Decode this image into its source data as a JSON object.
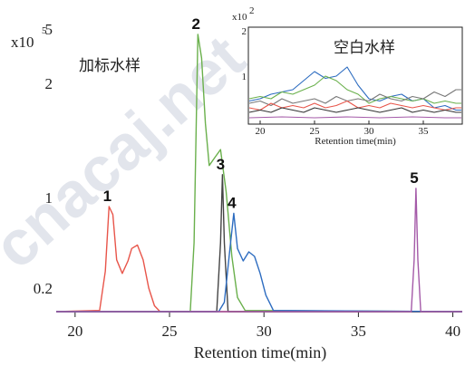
{
  "chart_data": [
    {
      "type": "line",
      "title": "加标水样",
      "xlabel": "Retention time(min)",
      "ylabel": "",
      "y_multiplier": "x10",
      "y_multiplier_exp": "5",
      "xlim": [
        19,
        40.5
      ],
      "ylim": [
        0,
        5
      ],
      "x_ticks": [
        20,
        25,
        30,
        35,
        40
      ],
      "y_ticks": [
        {
          "value": 0.2,
          "label": "0.2"
        },
        {
          "value": 1,
          "label": "1"
        },
        {
          "value": 2,
          "label": "2"
        },
        {
          "value": 5,
          "label": "5"
        }
      ],
      "series": [
        {
          "color": "#e8554a",
          "x": [
            19,
            21.3,
            21.6,
            21.8,
            22.0,
            22.2,
            22.5,
            22.8,
            23.0,
            23.3,
            23.6,
            23.9,
            24.2,
            24.5,
            40.5
          ],
          "y": [
            0,
            0.01,
            0.35,
            0.92,
            0.85,
            0.45,
            0.33,
            0.44,
            0.55,
            0.58,
            0.45,
            0.2,
            0.05,
            0,
            0
          ]
        },
        {
          "color": "#6ab04c",
          "x": [
            19,
            26.1,
            26.3,
            26.5,
            26.7,
            26.9,
            27.1,
            27.4,
            27.7,
            28.0,
            28.3,
            28.6,
            29.0,
            40.5
          ],
          "y": [
            0,
            0,
            0.6,
            4.7,
            3.4,
            1.65,
            1.28,
            1.35,
            1.42,
            1.05,
            0.48,
            0.12,
            0.01,
            0
          ]
        },
        {
          "color": "#444444",
          "x": [
            19,
            27.5,
            27.7,
            27.8,
            27.9,
            28.1,
            40.5
          ],
          "y": [
            0,
            0,
            0.6,
            1.2,
            0.6,
            0,
            0
          ]
        },
        {
          "color": "#2d6cc0",
          "x": [
            19,
            27.6,
            27.9,
            28.2,
            28.4,
            28.6,
            28.9,
            29.2,
            29.5,
            29.8,
            30.1,
            30.5,
            40.5
          ],
          "y": [
            0,
            0,
            0.08,
            0.55,
            0.86,
            0.55,
            0.44,
            0.52,
            0.48,
            0.33,
            0.14,
            0.01,
            0
          ]
        },
        {
          "color": "#a45aa8",
          "x": [
            19,
            37.8,
            37.95,
            38.05,
            38.15,
            38.3,
            40.5
          ],
          "y": [
            0,
            0,
            0.45,
            1.08,
            0.45,
            0,
            0
          ]
        }
      ],
      "annotations": [
        {
          "label": "1",
          "x": 21.8,
          "y": 0.92
        },
        {
          "label": "2",
          "x": 26.5,
          "y": 4.7
        },
        {
          "label": "3",
          "x": 27.8,
          "y": 1.2
        },
        {
          "label": "4",
          "x": 28.4,
          "y": 0.86
        },
        {
          "label": "5",
          "x": 38.05,
          "y": 1.08
        }
      ]
    },
    {
      "type": "line",
      "title": "空白水样",
      "xlabel": "Retention time(min)",
      "ylabel": "",
      "y_multiplier": "x10",
      "y_multiplier_exp": "2",
      "xlim": [
        19,
        38.5
      ],
      "ylim": [
        0,
        2
      ],
      "x_ticks": [
        20,
        25,
        30,
        35
      ],
      "y_ticks": [
        {
          "value": 1,
          "label": "1"
        },
        {
          "value": 2,
          "label": "2"
        }
      ],
      "series": [
        {
          "color": "#2d6cc0",
          "x": [
            19,
            20,
            21,
            22,
            23,
            24,
            25,
            26,
            27,
            28,
            29,
            30,
            31,
            32,
            33,
            34,
            35,
            36,
            37,
            38,
            38.5
          ],
          "y": [
            0.45,
            0.5,
            0.6,
            0.65,
            0.7,
            0.9,
            1.1,
            0.95,
            1.0,
            1.2,
            0.8,
            0.5,
            0.45,
            0.55,
            0.6,
            0.45,
            0.5,
            0.3,
            0.35,
            0.25,
            0.25
          ]
        },
        {
          "color": "#6ab04c",
          "x": [
            19,
            20,
            21,
            22,
            23,
            24,
            25,
            26,
            27,
            28,
            29,
            30,
            31,
            32,
            33,
            34,
            35,
            36,
            37,
            38,
            38.5
          ],
          "y": [
            0.5,
            0.55,
            0.5,
            0.65,
            0.6,
            0.7,
            0.8,
            1.0,
            0.9,
            0.7,
            0.6,
            0.4,
            0.5,
            0.55,
            0.5,
            0.45,
            0.5,
            0.4,
            0.45,
            0.4,
            0.4
          ]
        },
        {
          "color": "#777777",
          "x": [
            19,
            20,
            21,
            22,
            23,
            24,
            25,
            26,
            27,
            28,
            29,
            30,
            31,
            32,
            33,
            34,
            35,
            36,
            37,
            38,
            38.5
          ],
          "y": [
            0.4,
            0.45,
            0.35,
            0.5,
            0.4,
            0.45,
            0.5,
            0.4,
            0.55,
            0.45,
            0.5,
            0.45,
            0.6,
            0.5,
            0.45,
            0.55,
            0.5,
            0.65,
            0.55,
            0.7,
            0.7
          ]
        },
        {
          "color": "#e8554a",
          "x": [
            19,
            20,
            21,
            22,
            23,
            24,
            25,
            26,
            27,
            28,
            29,
            30,
            31,
            32,
            33,
            34,
            35,
            36,
            37,
            38,
            38.5
          ],
          "y": [
            0.3,
            0.25,
            0.4,
            0.3,
            0.35,
            0.3,
            0.4,
            0.3,
            0.35,
            0.45,
            0.3,
            0.35,
            0.3,
            0.4,
            0.35,
            0.3,
            0.35,
            0.3,
            0.25,
            0.3,
            0.3
          ]
        },
        {
          "color": "#333333",
          "x": [
            19,
            20,
            21,
            22,
            23,
            24,
            25,
            26,
            27,
            28,
            29,
            30,
            31,
            32,
            33,
            34,
            35,
            36,
            37,
            38,
            38.5
          ],
          "y": [
            0.2,
            0.25,
            0.2,
            0.3,
            0.25,
            0.2,
            0.3,
            0.25,
            0.2,
            0.25,
            0.3,
            0.25,
            0.2,
            0.25,
            0.3,
            0.2,
            0.25,
            0.2,
            0.25,
            0.2,
            0.2
          ]
        },
        {
          "color": "#a45aa8",
          "x": [
            19,
            22,
            25,
            28,
            31,
            34,
            37,
            38.5
          ],
          "y": [
            0.08,
            0.1,
            0.08,
            0.1,
            0.08,
            0.1,
            0.08,
            0.08
          ]
        }
      ]
    }
  ],
  "watermark": "cnacaj.net"
}
